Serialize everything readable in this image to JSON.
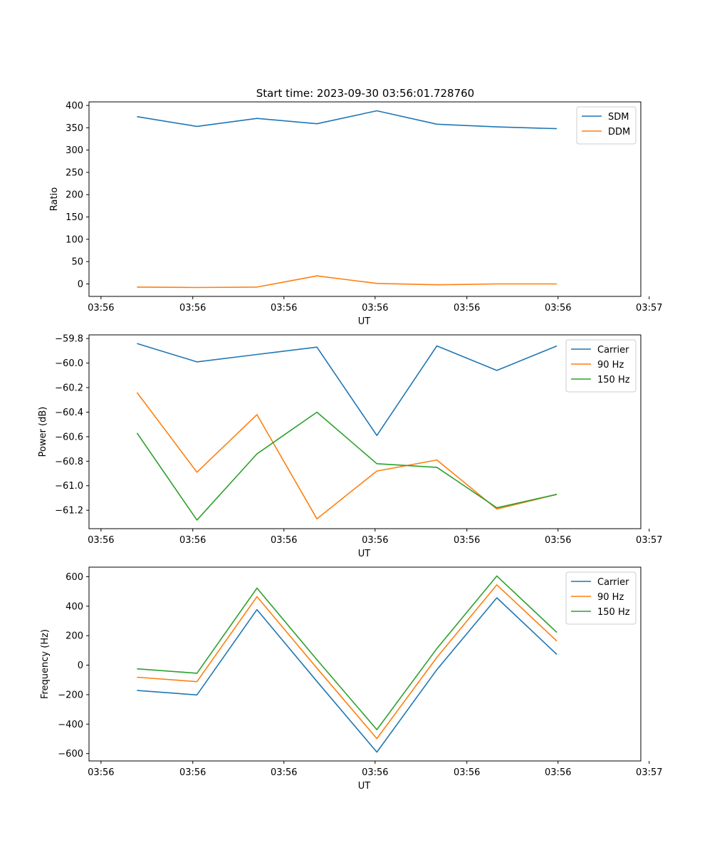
{
  "figure": {
    "title": "Start time: 2023-09-30 03:56:01.728760"
  },
  "chart_data": [
    {
      "type": "line",
      "title": "Start time: 2023-09-30 03:56:01.728760",
      "xlabel": "UT",
      "ylabel": "Ratio",
      "x": [
        1,
        2,
        3,
        4,
        5,
        6,
        7,
        8
      ],
      "xlim": [
        0.2,
        9.4
      ],
      "xticks": [
        0.4,
        1.93,
        3.45,
        4.97,
        6.5,
        8.02,
        9.54
      ],
      "xtick_labels": [
        "03:56",
        "03:56",
        "03:56",
        "03:56",
        "03:56",
        "03:56",
        "03:57"
      ],
      "ylim": [
        -28,
        408
      ],
      "yticks": [
        0,
        50,
        100,
        150,
        200,
        250,
        300,
        350,
        400
      ],
      "ytick_labels": [
        "0",
        "50",
        "100",
        "150",
        "200",
        "250",
        "300",
        "350",
        "400"
      ],
      "legend": "top-right",
      "series": [
        {
          "name": "SDM",
          "color": "#1f77b4",
          "values": [
            375,
            353,
            371,
            359,
            388,
            358,
            352,
            348
          ]
        },
        {
          "name": "DDM",
          "color": "#ff7f0e",
          "values": [
            -7,
            -8,
            -7,
            18,
            1,
            -2,
            0,
            0
          ]
        }
      ]
    },
    {
      "type": "line",
      "xlabel": "UT",
      "ylabel": "Power (dB)",
      "x": [
        1,
        2,
        3,
        4,
        5,
        6,
        7,
        8
      ],
      "xlim": [
        0.2,
        9.4
      ],
      "xticks": [
        0.4,
        1.93,
        3.45,
        4.97,
        6.5,
        8.02,
        9.54
      ],
      "xtick_labels": [
        "03:56",
        "03:56",
        "03:56",
        "03:56",
        "03:56",
        "03:56",
        "03:57"
      ],
      "ylim": [
        -61.35,
        -59.77
      ],
      "yticks": [
        -61.2,
        -61.0,
        -60.8,
        -60.6,
        -60.4,
        -60.2,
        -60.0,
        -59.8
      ],
      "ytick_labels": [
        "−61.2",
        "−61.0",
        "−60.8",
        "−60.6",
        "−60.4",
        "−60.2",
        "−60.0",
        "−59.8"
      ],
      "legend": "top-right",
      "series": [
        {
          "name": "Carrier",
          "color": "#1f77b4",
          "values": [
            -59.84,
            -59.99,
            -59.93,
            -59.87,
            -60.59,
            -59.86,
            -60.06,
            -59.86
          ]
        },
        {
          "name": "90 Hz",
          "color": "#ff7f0e",
          "values": [
            -60.24,
            -60.89,
            -60.42,
            -61.27,
            -60.88,
            -60.79,
            -61.19,
            -61.07
          ]
        },
        {
          "name": "150 Hz",
          "color": "#2ca02c",
          "values": [
            -60.57,
            -61.28,
            -60.74,
            -60.4,
            -60.82,
            -60.85,
            -61.18,
            -61.07
          ]
        }
      ]
    },
    {
      "type": "line",
      "xlabel": "UT",
      "ylabel": "Frequency (Hz)",
      "x": [
        1,
        2,
        3,
        4,
        5,
        6,
        7,
        8
      ],
      "xlim": [
        0.2,
        9.4
      ],
      "xticks": [
        0.4,
        1.93,
        3.45,
        4.97,
        6.5,
        8.02,
        9.54
      ],
      "xtick_labels": [
        "03:56",
        "03:56",
        "03:56",
        "03:56",
        "03:56",
        "03:56",
        "03:57"
      ],
      "ylim": [
        -650,
        665
      ],
      "yticks": [
        -600,
        -400,
        -200,
        0,
        200,
        400,
        600
      ],
      "ytick_labels": [
        "−600",
        "−400",
        "−200",
        "0",
        "200",
        "400",
        "600"
      ],
      "legend": "top-right",
      "series": [
        {
          "name": "Carrier",
          "color": "#1f77b4",
          "values": [
            -172,
            -202,
            377,
            -110,
            -590,
            -30,
            457,
            73
          ]
        },
        {
          "name": "90 Hz",
          "color": "#ff7f0e",
          "values": [
            -82,
            -112,
            465,
            -20,
            -498,
            53,
            545,
            163
          ]
        },
        {
          "name": "150 Hz",
          "color": "#2ca02c",
          "values": [
            -25,
            -55,
            523,
            37,
            -438,
            113,
            605,
            222
          ]
        }
      ]
    }
  ]
}
